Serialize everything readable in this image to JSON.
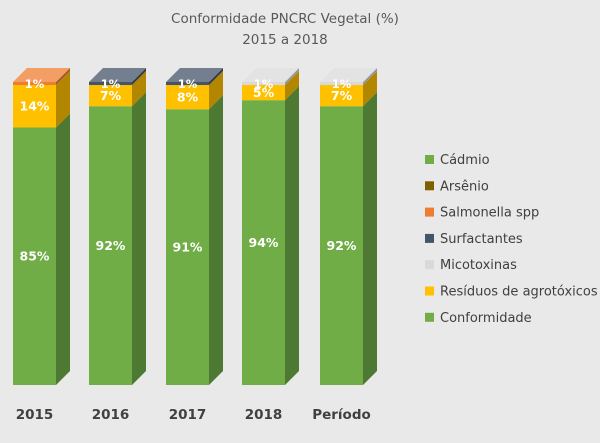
{
  "chart_data": {
    "type": "bar",
    "stacked": true,
    "title": "Conformidade PNCRC Vegetal (%)",
    "subtitle": "2015 a 2018",
    "categories": [
      "2015",
      "2016",
      "2017",
      "2018",
      "Período"
    ],
    "series": [
      {
        "name": "Conformidade",
        "color": "#70ad47",
        "values": [
          85,
          92,
          91,
          94,
          92
        ]
      },
      {
        "name": "Resíduos de agrotóxicos",
        "color": "#ffc000",
        "values": [
          14,
          7,
          8,
          5,
          7
        ]
      },
      {
        "name": "Micotoxinas",
        "color": "#d9d9d9",
        "values": [
          0,
          0,
          0,
          1,
          1
        ]
      },
      {
        "name": "Surfactantes",
        "color": "#44546a",
        "values": [
          0,
          1,
          1,
          0,
          0
        ]
      },
      {
        "name": "Salmonella spp",
        "color": "#ed7d31",
        "values": [
          1,
          0,
          0,
          0,
          0
        ]
      },
      {
        "name": "Arsênio",
        "color": "#7f6000",
        "values": [
          0,
          0,
          0,
          0,
          0
        ]
      },
      {
        "name": "Cádmio",
        "color": "#70ad47",
        "values": [
          0,
          0,
          0,
          0,
          0
        ]
      }
    ],
    "data_labels": [
      [
        "85%",
        "14%",
        "1%"
      ],
      [
        "92%",
        "7%",
        "1%"
      ],
      [
        "91%",
        "8%",
        "1%"
      ],
      [
        "94%",
        "5%",
        "1%"
      ],
      [
        "92%",
        "7%",
        "1%"
      ]
    ],
    "legend_order": [
      "Cádmio",
      "Arsênio",
      "Salmonella spp",
      "Surfactantes",
      "Micotoxinas",
      "Resíduos de agrotóxicos",
      "Conformidade"
    ],
    "legend_position": "right",
    "ylim": [
      0,
      100
    ],
    "grid": false
  }
}
